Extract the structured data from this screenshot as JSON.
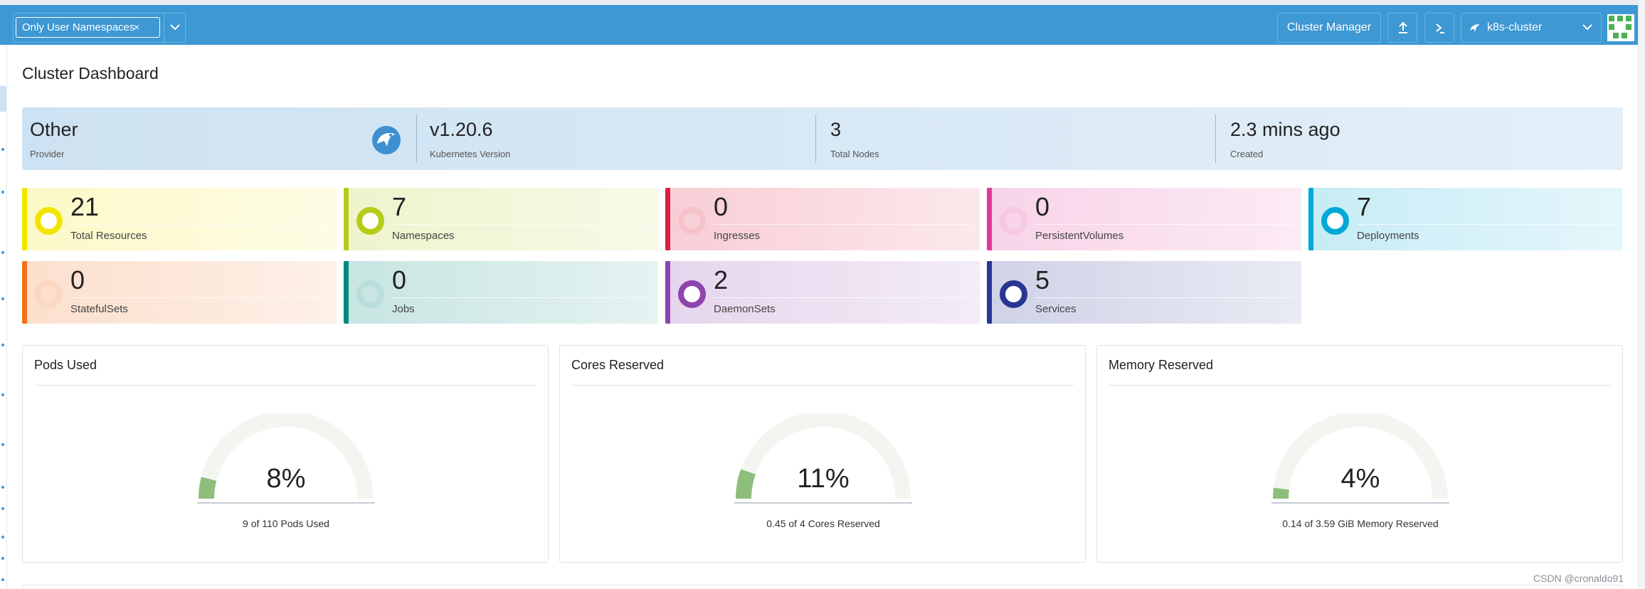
{
  "header": {
    "namespace_filter": "Only User Namespaces",
    "namespace_remove": "×",
    "cluster_manager_label": "Cluster Manager",
    "cluster_name": "k8s-cluster",
    "colors": {
      "bar": "#3d98d3"
    }
  },
  "page": {
    "title": "Cluster Dashboard"
  },
  "info": [
    {
      "value": "Other",
      "label": "Provider"
    },
    {
      "value": "v1.20.6",
      "label": "Kubernetes Version"
    },
    {
      "value": "3",
      "label": "Total Nodes"
    },
    {
      "value": "2.3 mins ago",
      "label": "Created"
    }
  ],
  "resources": [
    {
      "count": "21",
      "label": "Total Resources",
      "color": "#f1e500"
    },
    {
      "count": "7",
      "label": "Namespaces",
      "color": "#b5cc18"
    },
    {
      "count": "0",
      "label": "Ingresses",
      "color": "#e02040"
    },
    {
      "count": "0",
      "label": "PersistentVolumes",
      "color": "#e03997"
    },
    {
      "count": "7",
      "label": "Deployments",
      "color": "#00a9d6"
    },
    {
      "count": "0",
      "label": "StatefulSets",
      "color": "#f2711c"
    },
    {
      "count": "0",
      "label": "Jobs",
      "color": "#00897b"
    },
    {
      "count": "2",
      "label": "DaemonSets",
      "color": "#8e44ad"
    },
    {
      "count": "5",
      "label": "Services",
      "color": "#283593"
    }
  ],
  "gauges": [
    {
      "title": "Pods Used",
      "percent": "8%",
      "fraction": 0.08,
      "subtitle": "9 of 110 Pods Used"
    },
    {
      "title": "Cores Reserved",
      "percent": "11%",
      "fraction": 0.11,
      "subtitle": "0.45 of 4 Cores Reserved"
    },
    {
      "title": "Memory Reserved",
      "percent": "4%",
      "fraction": 0.04,
      "subtitle": "0.14 of 3.59 GiB Memory Reserved"
    }
  ],
  "watermark": "CSDN @cronaldo91"
}
